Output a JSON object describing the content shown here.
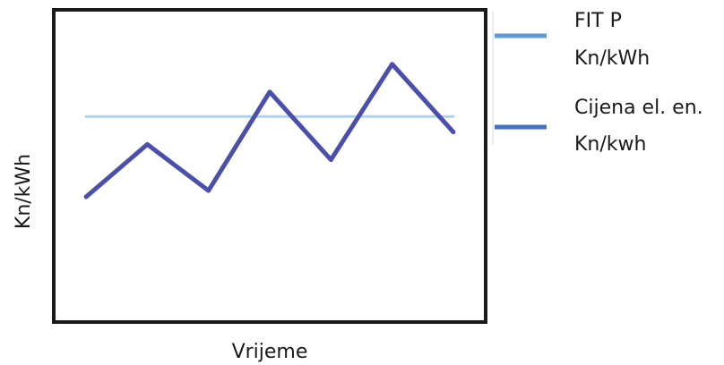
{
  "chart_data": {
    "type": "line",
    "title": "",
    "xlabel": "Vrijeme",
    "ylabel": "Kn/kWh",
    "grid": false,
    "legend_position": "right",
    "x": [
      0,
      1,
      2,
      3,
      4,
      5,
      6
    ],
    "xlim": [
      -0.5,
      6.5
    ],
    "ylim": [
      0,
      100
    ],
    "series": [
      {
        "name_lines": [
          "FIT P",
          "Kn/kWh"
        ],
        "color": "#a8d4f2",
        "legend_color": "#5b9bd5",
        "values": [
          66,
          66,
          66,
          66,
          66,
          66,
          66
        ]
      },
      {
        "name_lines": [
          "Cijena el. en.",
          "Kn/kwh"
        ],
        "color": "#4a4fad",
        "legend_color": "#4472c4",
        "values": [
          40,
          57,
          42,
          74,
          52,
          83,
          61
        ]
      }
    ]
  }
}
